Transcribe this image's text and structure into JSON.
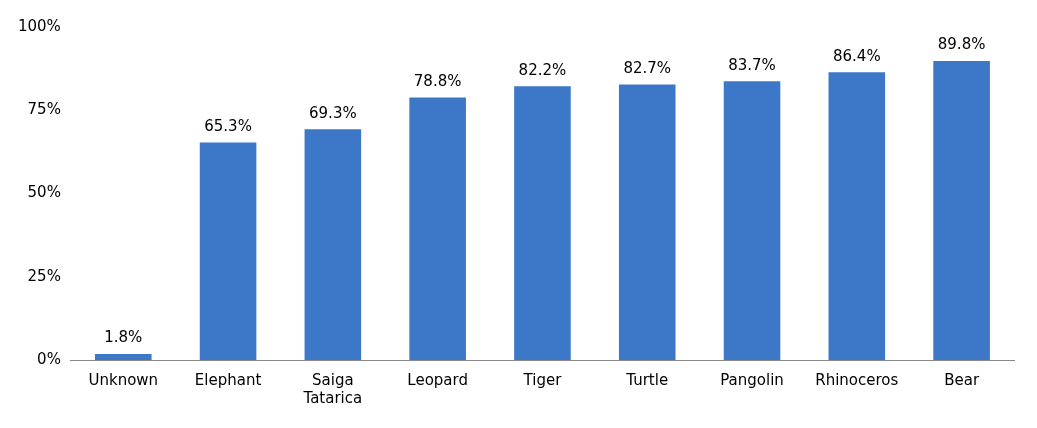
{
  "chart_data": {
    "type": "bar",
    "categories": [
      "Unknown",
      "Elephant",
      "Saiga Tatarica",
      "Leopard",
      "Tiger",
      "Turtle",
      "Pangolin",
      "Rhinoceros",
      "Bear"
    ],
    "values": [
      1.8,
      65.3,
      69.3,
      78.8,
      82.2,
      82.7,
      83.7,
      86.4,
      89.8
    ],
    "value_labels": [
      "1.8%",
      "65.3%",
      "69.3%",
      "78.8%",
      "82.2%",
      "82.7%",
      "83.7%",
      "86.4%",
      "89.8%"
    ],
    "color": "#3d78c8",
    "ylim": [
      0,
      100
    ],
    "yticks": [
      {
        "value": 0,
        "label": "0%"
      },
      {
        "value": 25,
        "label": "25%"
      },
      {
        "value": 50,
        "label": "50%"
      },
      {
        "value": 75,
        "label": "75%"
      },
      {
        "value": 100,
        "label": "100%"
      }
    ],
    "grid": false,
    "legend": false
  }
}
